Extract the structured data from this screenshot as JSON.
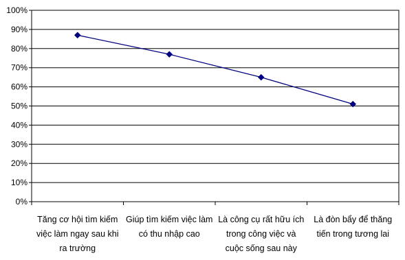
{
  "chart_data": {
    "type": "line",
    "title": "",
    "xlabel": "",
    "ylabel": "",
    "categories": [
      [
        "Tăng cơ hội tìm kiếm",
        "việc làm ngay sau khi",
        "ra trường"
      ],
      [
        "Giúp tìm kiếm việc làm",
        "có thu nhập cao"
      ],
      [
        "Là công cụ rất hữu ích",
        "trong công việc và",
        "cuộc sống sau này"
      ],
      [
        "Là đòn bẩy để thăng",
        "tiến trong tương lai"
      ]
    ],
    "series": [
      {
        "values": [
          87,
          77,
          65,
          51
        ]
      }
    ],
    "ylim": [
      0,
      100
    ],
    "yticks": [
      "0%",
      "10%",
      "20%",
      "30%",
      "40%",
      "50%",
      "60%",
      "70%",
      "80%",
      "90%",
      "100%"
    ],
    "grid": true,
    "legend": "none",
    "line_color": "#000080",
    "marker": "diamond"
  }
}
